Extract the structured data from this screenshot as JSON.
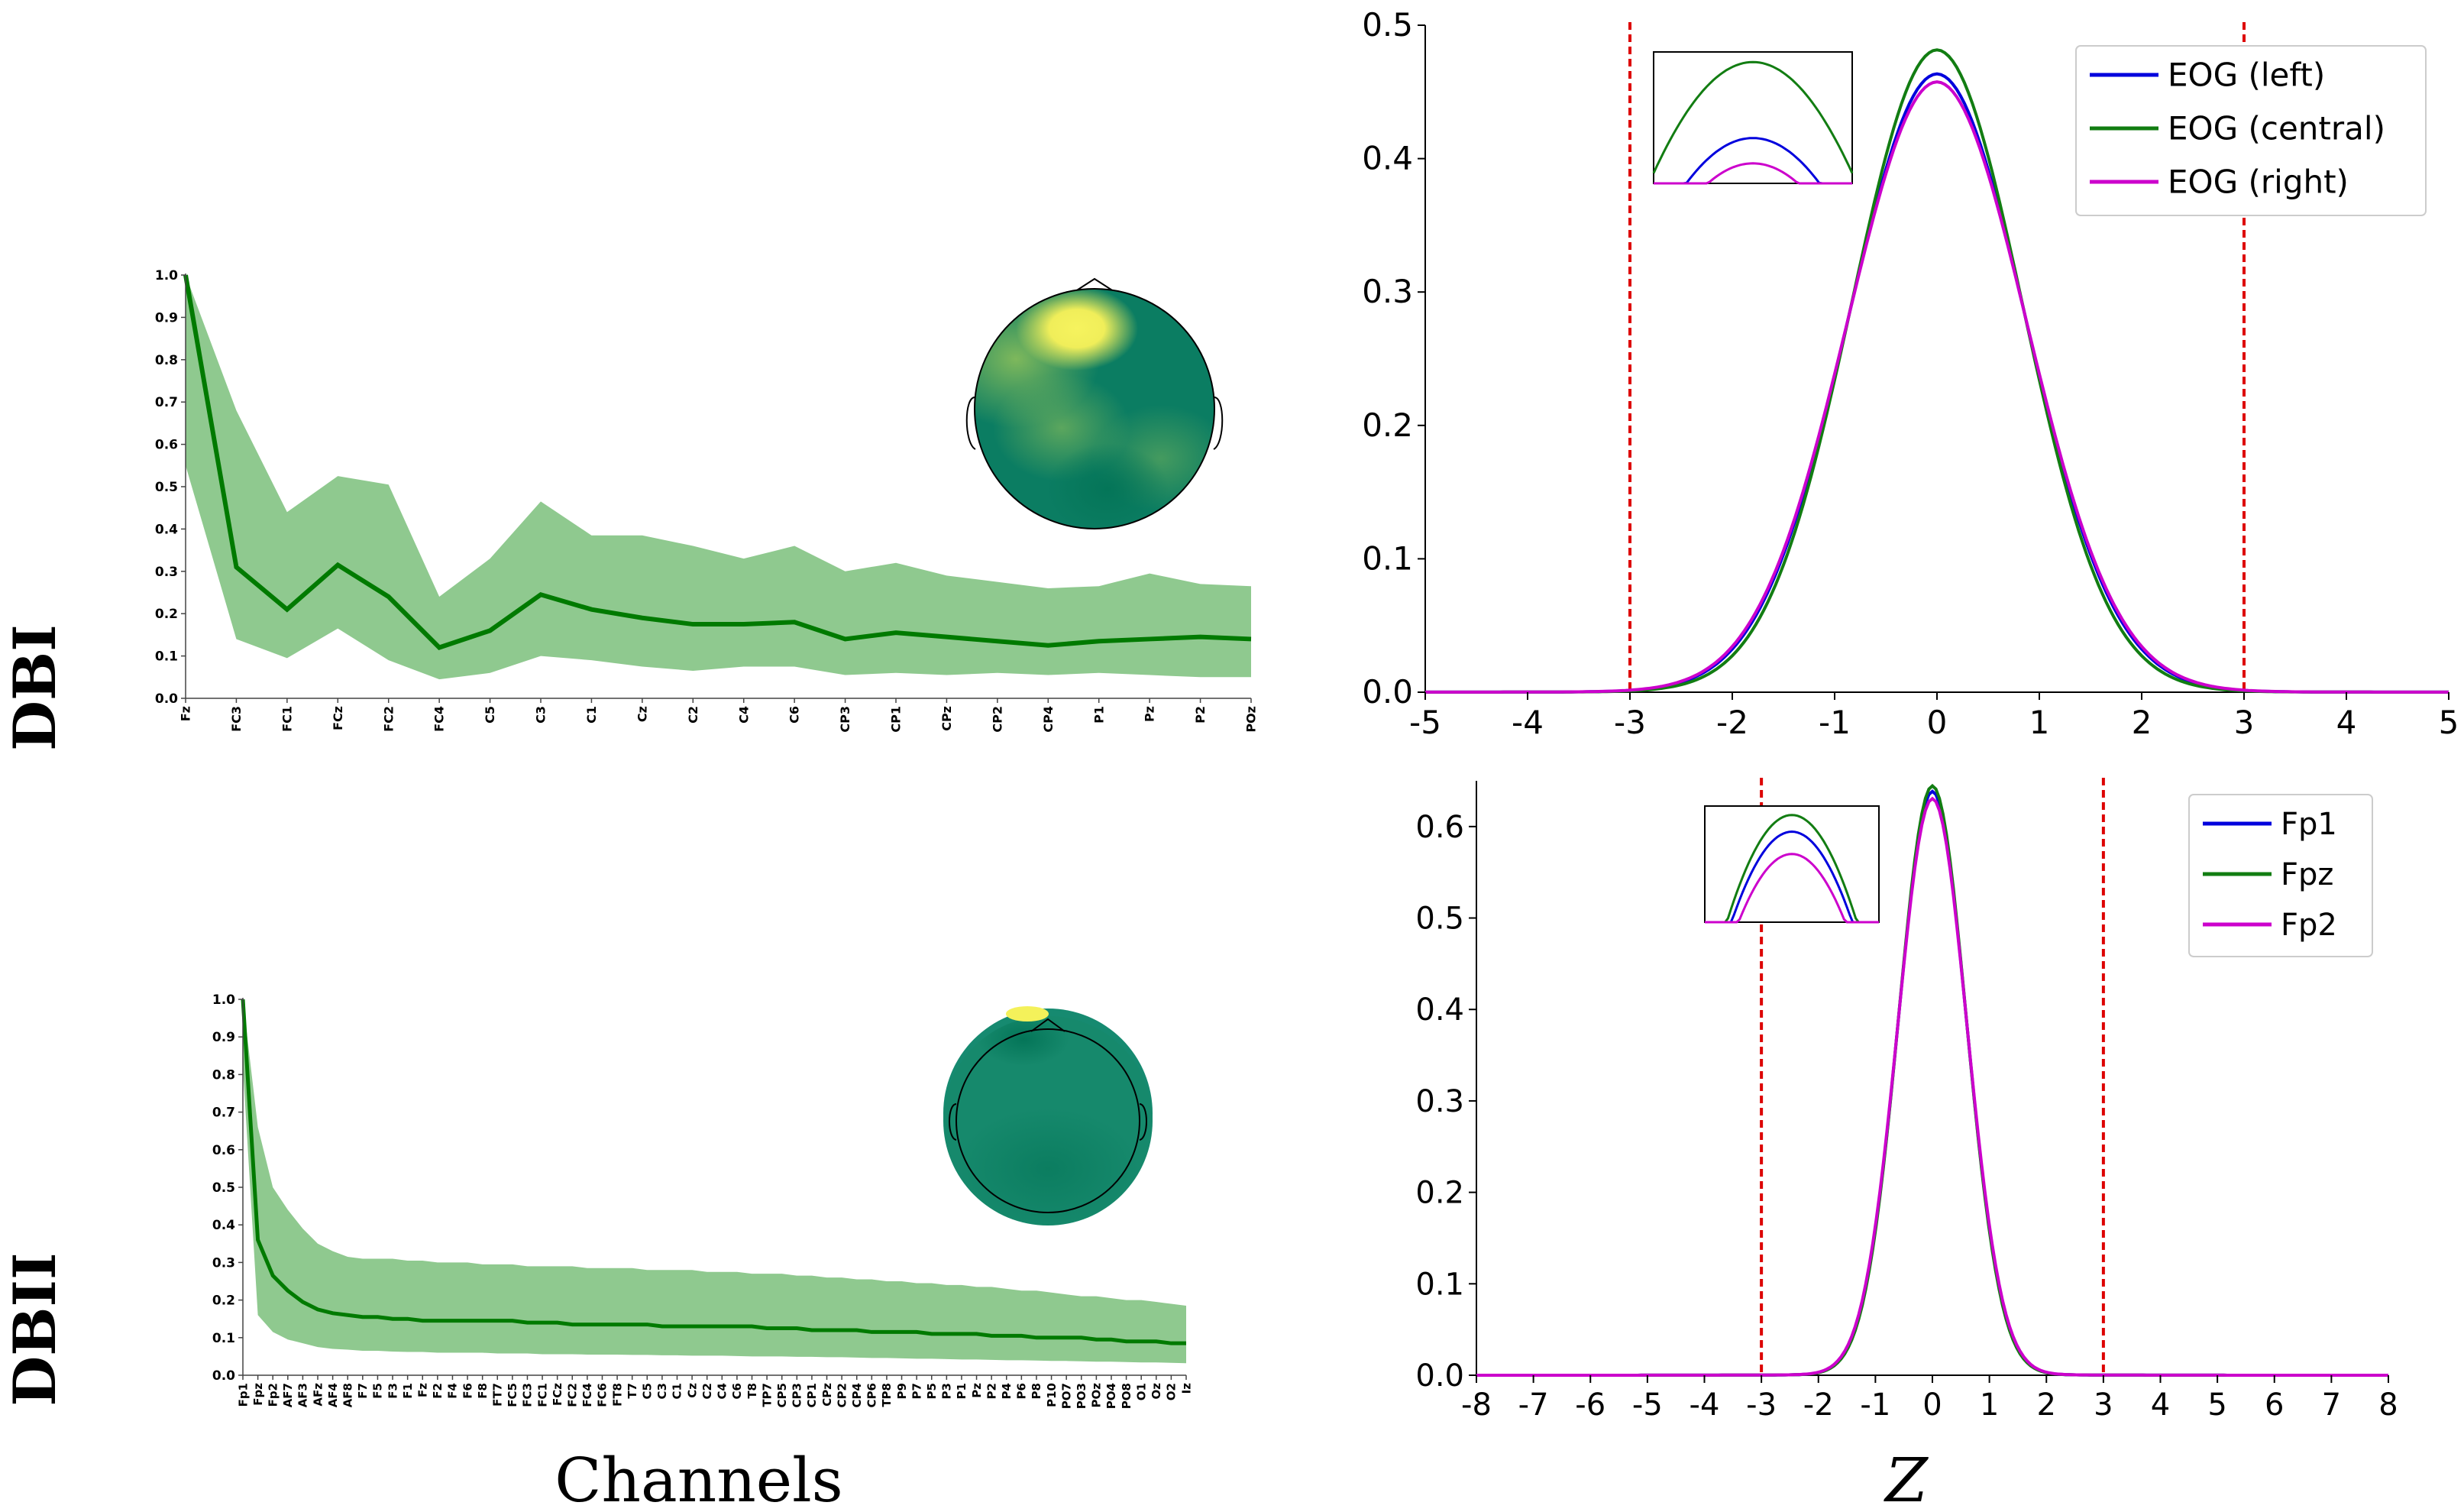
{
  "figure": {
    "row_labels": [
      "DBI",
      "DBII"
    ],
    "xlabel_left": "Channels",
    "xlabel_right": "Z"
  },
  "colors": {
    "line_green": "#007a00",
    "band_green": "#8fc98f",
    "blue": "#0000dd",
    "green": "#127d12",
    "magenta": "#cc00cc",
    "threshold_red": "#dd0000",
    "topo_base": "#0a7c62",
    "topo_mid": "#4ea060",
    "topo_hot": "#f4f15a"
  },
  "chart_data": [
    {
      "id": "dbi_channels",
      "type": "line",
      "title": "",
      "xlabel": "Channels",
      "ylabel": "",
      "ylim": [
        0,
        1
      ],
      "yticks": [
        "0.0",
        "0.1",
        "0.2",
        "0.3",
        "0.4",
        "0.5",
        "0.6",
        "0.7",
        "0.8",
        "0.9",
        "1.0"
      ],
      "categories": [
        "Fz",
        "FC3",
        "FC1",
        "FCz",
        "FC2",
        "FC4",
        "C5",
        "C3",
        "C1",
        "Cz",
        "C2",
        "C4",
        "C6",
        "CP3",
        "CP1",
        "CPz",
        "CP2",
        "CP4",
        "P1",
        "Pz",
        "P2",
        "POz"
      ],
      "mean": [
        1.0,
        0.31,
        0.21,
        0.315,
        0.24,
        0.12,
        0.16,
        0.245,
        0.21,
        0.19,
        0.175,
        0.175,
        0.18,
        0.14,
        0.155,
        0.145,
        0.135,
        0.125,
        0.135,
        0.14,
        0.145,
        0.14
      ],
      "upper": [
        1.0,
        0.68,
        0.44,
        0.525,
        0.505,
        0.24,
        0.33,
        0.465,
        0.385,
        0.385,
        0.36,
        0.33,
        0.36,
        0.3,
        0.32,
        0.29,
        0.275,
        0.26,
        0.265,
        0.295,
        0.27,
        0.265
      ],
      "lower": [
        0.55,
        0.14,
        0.095,
        0.165,
        0.09,
        0.045,
        0.06,
        0.1,
        0.09,
        0.075,
        0.065,
        0.075,
        0.075,
        0.055,
        0.06,
        0.055,
        0.06,
        0.055,
        0.06,
        0.055,
        0.05,
        0.05
      ]
    },
    {
      "id": "dbii_channels",
      "type": "line",
      "title": "",
      "xlabel": "Channels",
      "ylabel": "",
      "ylim": [
        0,
        1
      ],
      "yticks": [
        "0.0",
        "0.1",
        "0.2",
        "0.3",
        "0.4",
        "0.5",
        "0.6",
        "0.7",
        "0.8",
        "0.9",
        "1.0"
      ],
      "categories": [
        "Fp1",
        "Fpz",
        "Fp2",
        "AF7",
        "AF3",
        "AFz",
        "AF4",
        "AF8",
        "F7",
        "F5",
        "F3",
        "F1",
        "Fz",
        "F2",
        "F4",
        "F6",
        "F8",
        "FT7",
        "FC5",
        "FC3",
        "FC1",
        "FCz",
        "FC2",
        "FC4",
        "FC6",
        "FT8",
        "T7",
        "C5",
        "C3",
        "C1",
        "Cz",
        "C2",
        "C4",
        "C6",
        "T8",
        "TP7",
        "CP5",
        "CP3",
        "CP1",
        "CPz",
        "CP2",
        "CP4",
        "CP6",
        "TP8",
        "P9",
        "P7",
        "P5",
        "P3",
        "P1",
        "Pz",
        "P2",
        "P4",
        "P6",
        "P8",
        "P10",
        "PO7",
        "PO3",
        "POz",
        "PO4",
        "PO8",
        "O1",
        "Oz",
        "O2",
        "Iz"
      ],
      "mean": [
        1.0,
        0.36,
        0.265,
        0.225,
        0.195,
        0.175,
        0.165,
        0.16,
        0.155,
        0.155,
        0.15,
        0.15,
        0.145,
        0.145,
        0.145,
        0.145,
        0.145,
        0.145,
        0.145,
        0.14,
        0.14,
        0.14,
        0.135,
        0.135,
        0.135,
        0.135,
        0.135,
        0.135,
        0.13,
        0.13,
        0.13,
        0.13,
        0.13,
        0.13,
        0.13,
        0.125,
        0.125,
        0.125,
        0.12,
        0.12,
        0.12,
        0.12,
        0.115,
        0.115,
        0.115,
        0.115,
        0.11,
        0.11,
        0.11,
        0.11,
        0.105,
        0.105,
        0.105,
        0.1,
        0.1,
        0.1,
        0.1,
        0.095,
        0.095,
        0.09,
        0.09,
        0.09,
        0.085,
        0.085
      ],
      "upper": [
        1.0,
        0.66,
        0.5,
        0.44,
        0.39,
        0.35,
        0.33,
        0.315,
        0.31,
        0.31,
        0.31,
        0.305,
        0.305,
        0.3,
        0.3,
        0.3,
        0.295,
        0.295,
        0.295,
        0.29,
        0.29,
        0.29,
        0.29,
        0.285,
        0.285,
        0.285,
        0.285,
        0.28,
        0.28,
        0.28,
        0.28,
        0.275,
        0.275,
        0.275,
        0.27,
        0.27,
        0.27,
        0.265,
        0.265,
        0.26,
        0.26,
        0.255,
        0.255,
        0.25,
        0.25,
        0.245,
        0.245,
        0.24,
        0.24,
        0.235,
        0.235,
        0.23,
        0.225,
        0.225,
        0.22,
        0.215,
        0.21,
        0.21,
        0.205,
        0.2,
        0.2,
        0.195,
        0.19,
        0.185
      ],
      "lower": [
        0.82,
        0.16,
        0.115,
        0.095,
        0.085,
        0.075,
        0.07,
        0.068,
        0.065,
        0.065,
        0.063,
        0.062,
        0.062,
        0.06,
        0.06,
        0.06,
        0.06,
        0.058,
        0.058,
        0.058,
        0.056,
        0.056,
        0.056,
        0.055,
        0.055,
        0.055,
        0.054,
        0.054,
        0.053,
        0.053,
        0.052,
        0.052,
        0.052,
        0.051,
        0.05,
        0.05,
        0.05,
        0.049,
        0.049,
        0.048,
        0.048,
        0.047,
        0.046,
        0.046,
        0.045,
        0.044,
        0.044,
        0.043,
        0.042,
        0.042,
        0.041,
        0.04,
        0.04,
        0.039,
        0.038,
        0.038,
        0.037,
        0.036,
        0.036,
        0.035,
        0.034,
        0.034,
        0.033,
        0.032
      ]
    },
    {
      "id": "dbi_density",
      "type": "line",
      "title": "",
      "xlabel": "Z",
      "ylabel": "",
      "xlim": [
        -5,
        5
      ],
      "ylim": [
        0,
        0.5
      ],
      "xticks": [
        "-5",
        "-4",
        "-3",
        "-2",
        "-1",
        "0",
        "1",
        "2",
        "3",
        "4",
        "5"
      ],
      "yticks": [
        "0.0",
        "0.1",
        "0.2",
        "0.3",
        "0.4",
        "0.5"
      ],
      "thresholds": [
        -3,
        3
      ],
      "legend_position": "top-right",
      "series": [
        {
          "name": "EOG (left)",
          "color": "#0000dd",
          "peak": 0.461,
          "sigma": 0.865
        },
        {
          "name": "EOG (central)",
          "color": "#127d12",
          "peak": 0.479,
          "sigma": 0.833
        },
        {
          "name": "EOG (right)",
          "color": "#cc00cc",
          "peak": 0.455,
          "sigma": 0.877
        }
      ]
    },
    {
      "id": "dbii_density",
      "type": "line",
      "title": "",
      "xlabel": "Z",
      "ylabel": "",
      "xlim": [
        -8,
        8
      ],
      "ylim": [
        0,
        0.65
      ],
      "xticks": [
        "-8",
        "-7",
        "-6",
        "-5",
        "-4",
        "-3",
        "-2",
        "-1",
        "0",
        "1",
        "2",
        "3",
        "4",
        "5",
        "6",
        "7",
        "8"
      ],
      "yticks": [
        "0.0",
        "0.1",
        "0.2",
        "0.3",
        "0.4",
        "0.5",
        "0.6"
      ],
      "thresholds": [
        -3,
        3
      ],
      "legend_position": "top-right",
      "series": [
        {
          "name": "Fp1",
          "color": "#0000dd",
          "peak": 0.636,
          "sigma": 0.6
        },
        {
          "name": "Fpz",
          "color": "#127d12",
          "peak": 0.642,
          "sigma": 0.595
        },
        {
          "name": "Fp2",
          "color": "#cc00cc",
          "peak": 0.628,
          "sigma": 0.608
        }
      ]
    }
  ]
}
